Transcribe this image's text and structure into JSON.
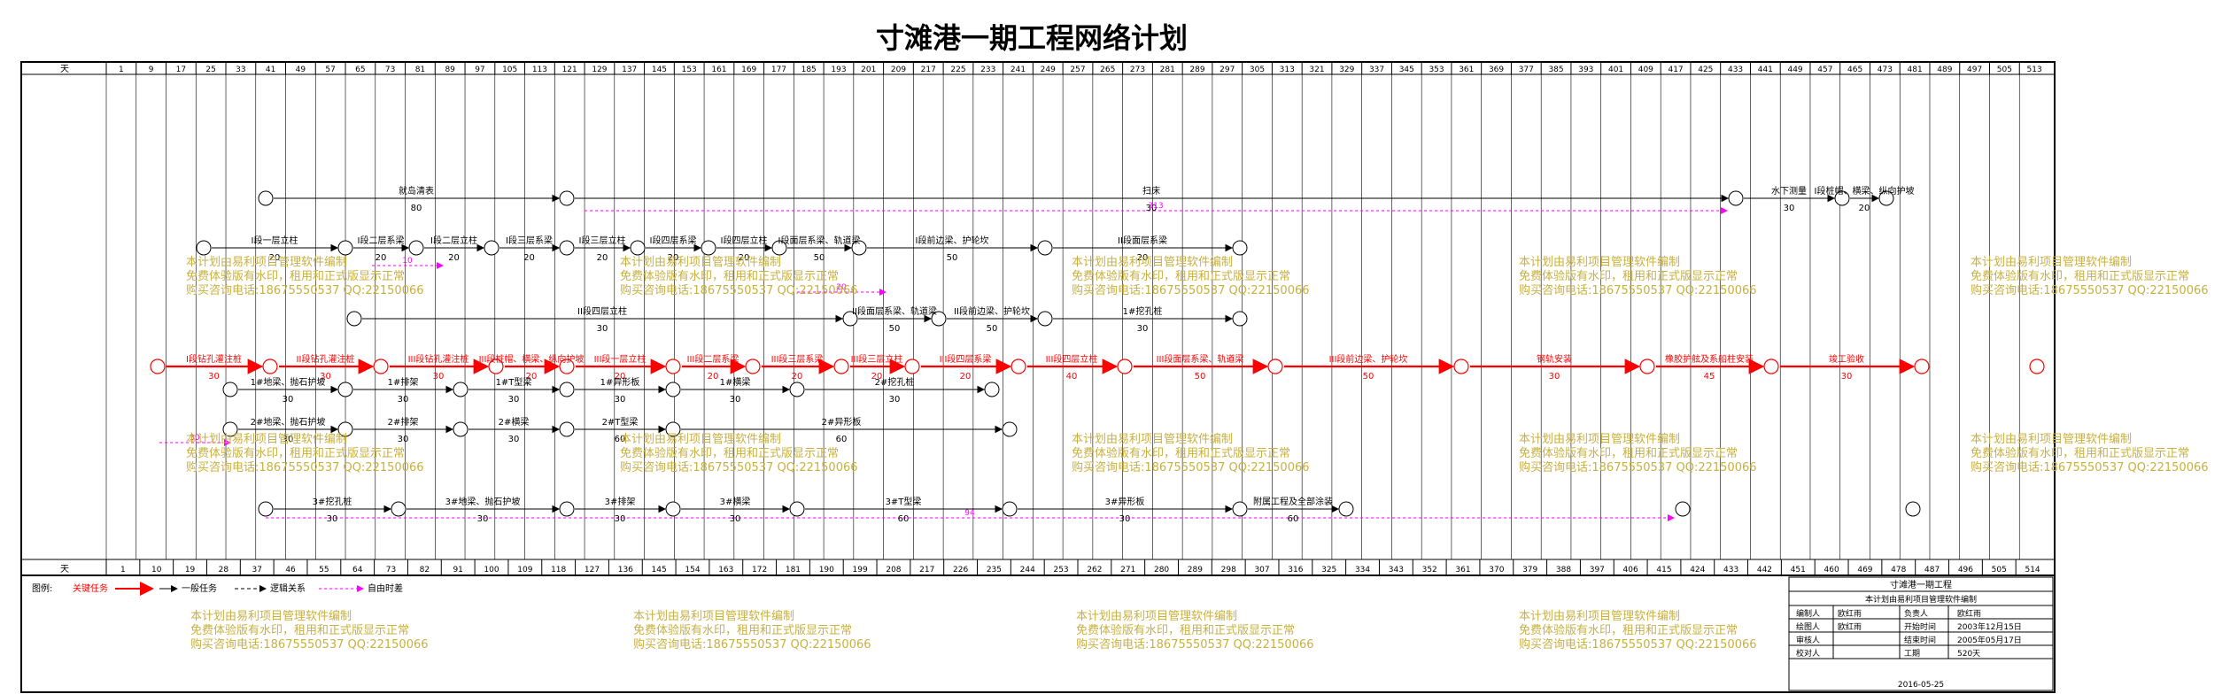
{
  "title": "寸滩港一期工程网络计划",
  "axis": {
    "unit_label": "天",
    "top_ticks": [
      "1",
      "9",
      "17",
      "25",
      "33",
      "41",
      "49",
      "57",
      "65",
      "73",
      "81",
      "89",
      "97",
      "105",
      "113",
      "121",
      "129",
      "137",
      "145",
      "153",
      "161",
      "169",
      "177",
      "185",
      "193",
      "201",
      "209",
      "217",
      "225",
      "233",
      "241",
      "249",
      "257",
      "265",
      "273",
      "281",
      "289",
      "297",
      "305",
      "313",
      "321",
      "329",
      "337",
      "345",
      "353",
      "361",
      "369",
      "377",
      "385",
      "393",
      "401",
      "409",
      "417",
      "425",
      "433",
      "441",
      "449",
      "457",
      "465",
      "473",
      "481",
      "489",
      "497",
      "505",
      "513"
    ],
    "bottom_ticks": [
      "1",
      "10",
      "19",
      "28",
      "37",
      "46",
      "55",
      "64",
      "73",
      "82",
      "91",
      "100",
      "109",
      "118",
      "127",
      "136",
      "145",
      "154",
      "163",
      "172",
      "181",
      "190",
      "199",
      "208",
      "217",
      "226",
      "235",
      "244",
      "253",
      "262",
      "271",
      "280",
      "289",
      "298",
      "307",
      "316",
      "325",
      "334",
      "343",
      "352",
      "361",
      "370",
      "379",
      "388",
      "397",
      "406",
      "415",
      "424",
      "433",
      "442",
      "451",
      "460",
      "469",
      "478",
      "487",
      "496",
      "505",
      "514"
    ]
  },
  "activities": [
    {
      "label": "I段钻孔灌注桩",
      "dur": "30",
      "kind": "critical"
    },
    {
      "label": "II段钻孔灌注桩",
      "dur": "30",
      "kind": "critical"
    },
    {
      "label": "III段钻孔灌注桩",
      "dur": "30",
      "kind": "critical"
    },
    {
      "label": "III段桩帽、横梁、纵向护坡",
      "dur": "20",
      "kind": "critical"
    },
    {
      "label": "III段一层立柱",
      "dur": "20",
      "kind": "critical"
    },
    {
      "label": "III段二层系梁",
      "dur": "20",
      "kind": "critical"
    },
    {
      "label": "III段三层系梁",
      "dur": "20",
      "kind": "critical"
    },
    {
      "label": "III段三层立柱",
      "dur": "20",
      "kind": "critical"
    },
    {
      "label": "III段四层系梁",
      "dur": "20",
      "kind": "critical"
    },
    {
      "label": "III段四层立柱",
      "dur": "40",
      "kind": "critical"
    },
    {
      "label": "III段面层系梁、轨道梁",
      "dur": "50",
      "kind": "critical"
    },
    {
      "label": "III段前边梁、护轮坎",
      "dur": "50",
      "kind": "critical"
    },
    {
      "label": "钢轨安装",
      "dur": "30",
      "kind": "critical"
    },
    {
      "label": "橡胶护舷及系船柱安装",
      "dur": "45",
      "kind": "critical"
    },
    {
      "label": "竣工验收",
      "dur": "30",
      "kind": "critical"
    },
    {
      "label": "就岛清表",
      "dur": "80",
      "kind": "normal"
    },
    {
      "label": "扫床",
      "dur": "30",
      "kind": "normal"
    },
    {
      "label": "水下测量",
      "dur": "30",
      "kind": "normal"
    },
    {
      "label": "I段桩帽、横梁、纵向护坡",
      "dur": "20",
      "kind": "normal"
    },
    {
      "label": "I段一层立柱",
      "dur": "20",
      "kind": "normal"
    },
    {
      "label": "I段二层系梁",
      "dur": "20",
      "kind": "normal"
    },
    {
      "label": "I段二层立柱",
      "dur": "20",
      "kind": "normal"
    },
    {
      "label": "I段三层系梁",
      "dur": "20",
      "kind": "normal"
    },
    {
      "label": "I段三层立柱",
      "dur": "20",
      "kind": "normal"
    },
    {
      "label": "I段四层系梁",
      "dur": "20",
      "kind": "normal"
    },
    {
      "label": "I段四层立柱",
      "dur": "20",
      "kind": "normal"
    },
    {
      "label": "I段面层系梁、轨道梁",
      "dur": "50",
      "kind": "normal"
    },
    {
      "label": "I段前边梁、护轮坎",
      "dur": "50",
      "kind": "normal"
    },
    {
      "label": "II段面层系梁",
      "dur": "20",
      "kind": "normal"
    },
    {
      "label": "II段四层立柱",
      "dur": "30",
      "kind": "normal"
    },
    {
      "label": "II段面层系梁、轨道梁",
      "dur": "50",
      "kind": "normal"
    },
    {
      "label": "II段前边梁、护轮坎",
      "dur": "50",
      "kind": "normal"
    },
    {
      "label": "1#挖孔桩",
      "dur": "30",
      "kind": "normal"
    },
    {
      "label": "1#地梁、抛石护坡",
      "dur": "30",
      "kind": "normal"
    },
    {
      "label": "1#排架",
      "dur": "30",
      "kind": "normal"
    },
    {
      "label": "1#T型梁",
      "dur": "30",
      "kind": "normal"
    },
    {
      "label": "1#异形板",
      "dur": "30",
      "kind": "normal"
    },
    {
      "label": "1#横梁",
      "dur": "30",
      "kind": "normal"
    },
    {
      "label": "2#挖孔桩",
      "dur": "30",
      "kind": "normal"
    },
    {
      "label": "2#地梁、抛石护坡",
      "dur": "30",
      "kind": "normal"
    },
    {
      "label": "2#排架",
      "dur": "30",
      "kind": "normal"
    },
    {
      "label": "2#横梁",
      "dur": "30",
      "kind": "normal"
    },
    {
      "label": "2#T型梁",
      "dur": "60",
      "kind": "normal"
    },
    {
      "label": "2#异形板",
      "dur": "60",
      "kind": "normal"
    },
    {
      "label": "3#挖孔桩",
      "dur": "30",
      "kind": "normal"
    },
    {
      "label": "3#地梁、抛石护坡",
      "dur": "30",
      "kind": "normal"
    },
    {
      "label": "3#排架",
      "dur": "30",
      "kind": "normal"
    },
    {
      "label": "3#横梁",
      "dur": "30",
      "kind": "normal"
    },
    {
      "label": "3#T型梁",
      "dur": "60",
      "kind": "normal"
    },
    {
      "label": "3#异形板",
      "dur": "30",
      "kind": "normal"
    },
    {
      "label": "附属工程及全部涂装",
      "dur": "60",
      "kind": "normal"
    }
  ],
  "float_labels": [
    "313",
    "94",
    "10",
    "20",
    "30"
  ],
  "legend": {
    "label": "图例:",
    "critical": "关键任务",
    "normal": "一般任务",
    "logic": "逻辑关系",
    "float": "自由时差"
  },
  "watermark": {
    "line1": "本计划由易利项目管理软件编制",
    "line2": "免费体验版有水印，租用和正式版显示正常",
    "line3": "购买咨询电话:18675550537 QQ:22150066"
  },
  "title_block": {
    "project": "寸滩港一期工程",
    "software_note": "本计划由易利项目管理软件编制",
    "rows": [
      {
        "k1": "编制人",
        "v1": "欧红雨",
        "k2": "负责人",
        "v2": "欧红雨"
      },
      {
        "k1": "绘图人",
        "v1": "欧红雨",
        "k2": "开始时间",
        "v2": "2003年12月15日"
      },
      {
        "k1": "审核人",
        "v1": "",
        "k2": "结束时间",
        "v2": "2005年05月17日"
      },
      {
        "k1": "校对人",
        "v1": "",
        "k2": "工期",
        "v2": "520天"
      }
    ],
    "date": "2016-05-25"
  },
  "colors": {
    "critical": "#ff0000",
    "normal": "#000000",
    "float": "#ff00ff",
    "green": "#00b000",
    "watermark": "#c8b040"
  }
}
